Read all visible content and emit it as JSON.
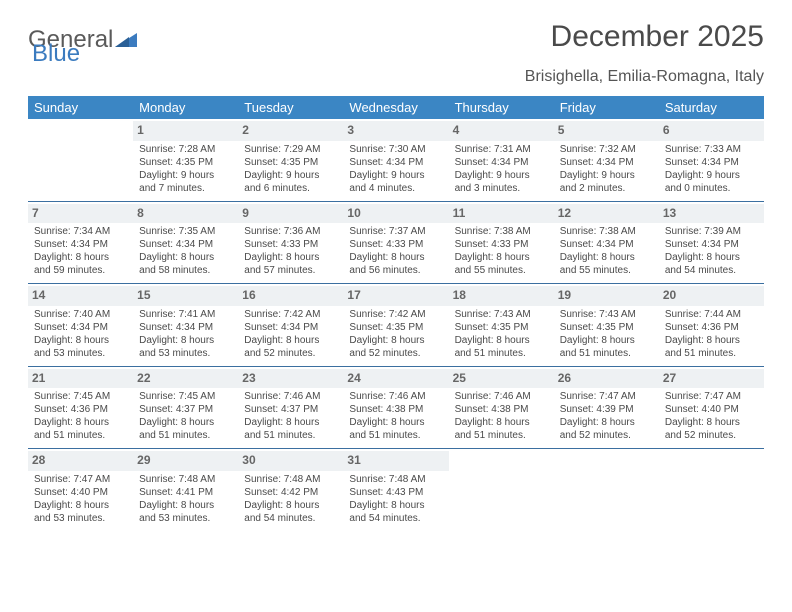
{
  "logo": {
    "text1": "General",
    "text2": "Blue"
  },
  "title": "December 2025",
  "location": "Brisighella, Emilia-Romagna, Italy",
  "colors": {
    "header_bg": "#3b86c4",
    "header_text": "#ffffff",
    "row_divider": "#3b6fa0",
    "daynum_bg": "#eef1f3",
    "daynum_text": "#666666",
    "body_text": "#4a4a4a",
    "logo_gray": "#5a5a5a",
    "logo_blue": "#3b7bbf"
  },
  "day_headers": [
    "Sunday",
    "Monday",
    "Tuesday",
    "Wednesday",
    "Thursday",
    "Friday",
    "Saturday"
  ],
  "weeks": [
    [
      null,
      {
        "n": "1",
        "sr": "7:28 AM",
        "ss": "4:35 PM",
        "d": "9 hours and 7 minutes."
      },
      {
        "n": "2",
        "sr": "7:29 AM",
        "ss": "4:35 PM",
        "d": "9 hours and 6 minutes."
      },
      {
        "n": "3",
        "sr": "7:30 AM",
        "ss": "4:34 PM",
        "d": "9 hours and 4 minutes."
      },
      {
        "n": "4",
        "sr": "7:31 AM",
        "ss": "4:34 PM",
        "d": "9 hours and 3 minutes."
      },
      {
        "n": "5",
        "sr": "7:32 AM",
        "ss": "4:34 PM",
        "d": "9 hours and 2 minutes."
      },
      {
        "n": "6",
        "sr": "7:33 AM",
        "ss": "4:34 PM",
        "d": "9 hours and 0 minutes."
      }
    ],
    [
      {
        "n": "7",
        "sr": "7:34 AM",
        "ss": "4:34 PM",
        "d": "8 hours and 59 minutes."
      },
      {
        "n": "8",
        "sr": "7:35 AM",
        "ss": "4:34 PM",
        "d": "8 hours and 58 minutes."
      },
      {
        "n": "9",
        "sr": "7:36 AM",
        "ss": "4:33 PM",
        "d": "8 hours and 57 minutes."
      },
      {
        "n": "10",
        "sr": "7:37 AM",
        "ss": "4:33 PM",
        "d": "8 hours and 56 minutes."
      },
      {
        "n": "11",
        "sr": "7:38 AM",
        "ss": "4:33 PM",
        "d": "8 hours and 55 minutes."
      },
      {
        "n": "12",
        "sr": "7:38 AM",
        "ss": "4:34 PM",
        "d": "8 hours and 55 minutes."
      },
      {
        "n": "13",
        "sr": "7:39 AM",
        "ss": "4:34 PM",
        "d": "8 hours and 54 minutes."
      }
    ],
    [
      {
        "n": "14",
        "sr": "7:40 AM",
        "ss": "4:34 PM",
        "d": "8 hours and 53 minutes."
      },
      {
        "n": "15",
        "sr": "7:41 AM",
        "ss": "4:34 PM",
        "d": "8 hours and 53 minutes."
      },
      {
        "n": "16",
        "sr": "7:42 AM",
        "ss": "4:34 PM",
        "d": "8 hours and 52 minutes."
      },
      {
        "n": "17",
        "sr": "7:42 AM",
        "ss": "4:35 PM",
        "d": "8 hours and 52 minutes."
      },
      {
        "n": "18",
        "sr": "7:43 AM",
        "ss": "4:35 PM",
        "d": "8 hours and 51 minutes."
      },
      {
        "n": "19",
        "sr": "7:43 AM",
        "ss": "4:35 PM",
        "d": "8 hours and 51 minutes."
      },
      {
        "n": "20",
        "sr": "7:44 AM",
        "ss": "4:36 PM",
        "d": "8 hours and 51 minutes."
      }
    ],
    [
      {
        "n": "21",
        "sr": "7:45 AM",
        "ss": "4:36 PM",
        "d": "8 hours and 51 minutes."
      },
      {
        "n": "22",
        "sr": "7:45 AM",
        "ss": "4:37 PM",
        "d": "8 hours and 51 minutes."
      },
      {
        "n": "23",
        "sr": "7:46 AM",
        "ss": "4:37 PM",
        "d": "8 hours and 51 minutes."
      },
      {
        "n": "24",
        "sr": "7:46 AM",
        "ss": "4:38 PM",
        "d": "8 hours and 51 minutes."
      },
      {
        "n": "25",
        "sr": "7:46 AM",
        "ss": "4:38 PM",
        "d": "8 hours and 51 minutes."
      },
      {
        "n": "26",
        "sr": "7:47 AM",
        "ss": "4:39 PM",
        "d": "8 hours and 52 minutes."
      },
      {
        "n": "27",
        "sr": "7:47 AM",
        "ss": "4:40 PM",
        "d": "8 hours and 52 minutes."
      }
    ],
    [
      {
        "n": "28",
        "sr": "7:47 AM",
        "ss": "4:40 PM",
        "d": "8 hours and 53 minutes."
      },
      {
        "n": "29",
        "sr": "7:48 AM",
        "ss": "4:41 PM",
        "d": "8 hours and 53 minutes."
      },
      {
        "n": "30",
        "sr": "7:48 AM",
        "ss": "4:42 PM",
        "d": "8 hours and 54 minutes."
      },
      {
        "n": "31",
        "sr": "7:48 AM",
        "ss": "4:43 PM",
        "d": "8 hours and 54 minutes."
      },
      null,
      null,
      null
    ]
  ],
  "labels": {
    "sunrise": "Sunrise:",
    "sunset": "Sunset:",
    "daylight": "Daylight:"
  }
}
